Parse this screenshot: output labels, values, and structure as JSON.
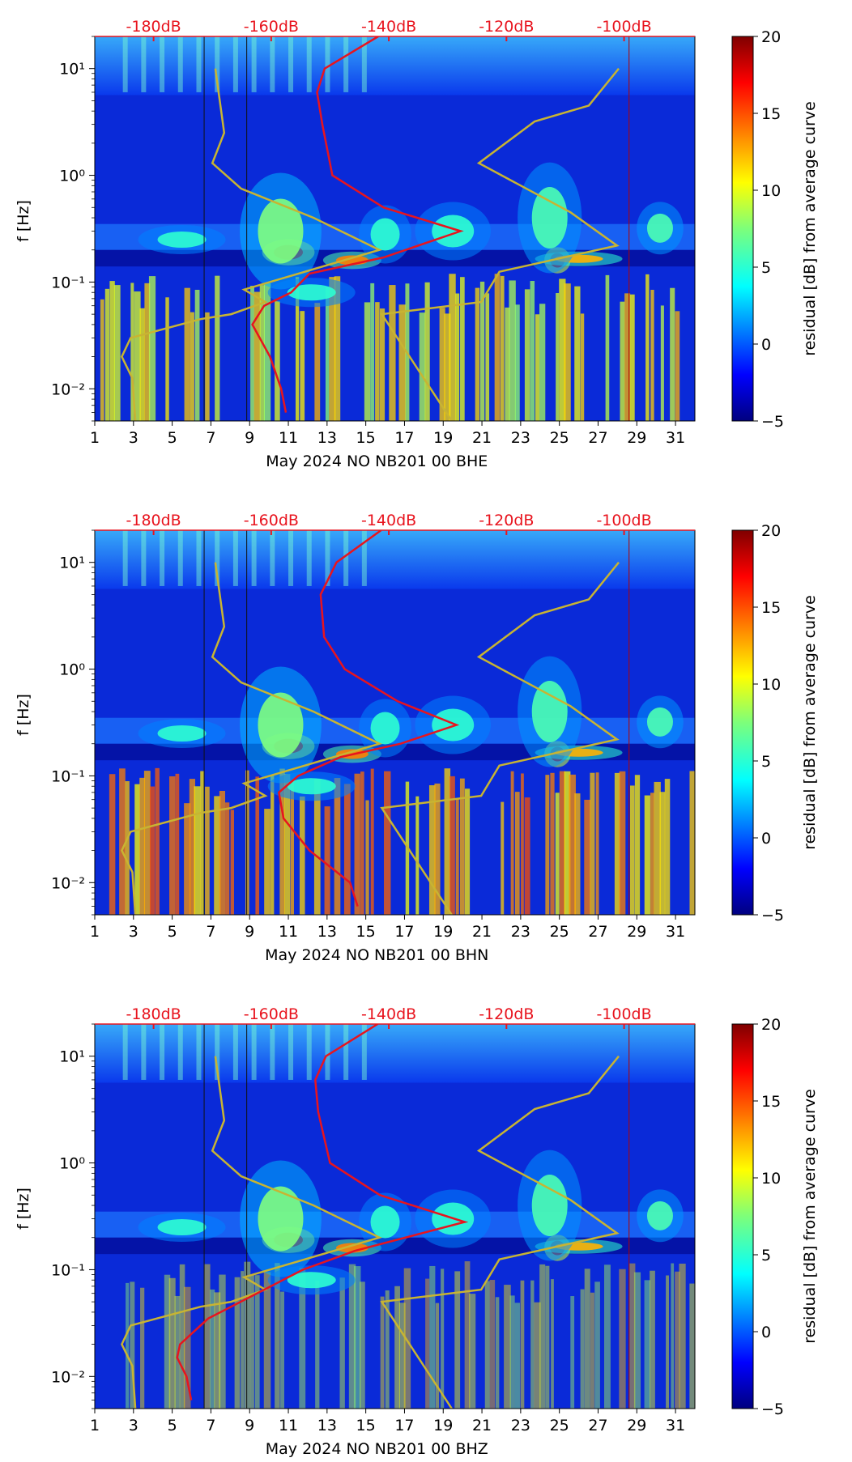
{
  "colors": {
    "median_curve": "#e8141e",
    "noise_models": "#c8b432",
    "top_db_labels": "#e8141e",
    "background": "#ffffff"
  },
  "colorbar": {
    "label": "residual [dB] from average curve",
    "range": [
      -5,
      20
    ],
    "ticks": [
      "−5",
      "0",
      "5",
      "10",
      "15",
      "20"
    ],
    "colormap": "jet"
  },
  "chart_data": [
    {
      "type": "heatmap",
      "xlabel": "May 2024 NO NB201 00 BHE",
      "ylabel": "f [Hz]",
      "xlim": [
        1,
        32
      ],
      "ylim": [
        0.005,
        20
      ],
      "yscale": "log",
      "x_ticks": [
        "1",
        "3",
        "5",
        "7",
        "9",
        "11",
        "13",
        "15",
        "17",
        "19",
        "21",
        "23",
        "25",
        "27",
        "29",
        "31"
      ],
      "y_ticks": [
        "10⁻²",
        "10⁻¹",
        "10⁰",
        "10¹"
      ],
      "top_ticks": [
        "-180dB",
        "-160dB",
        "-140dB",
        "-120dB",
        "-100dB"
      ],
      "median_psd_curve_db": [
        {
          "f": 0.006,
          "db": -157.5
        },
        {
          "f": 0.01,
          "db": -158.3
        },
        {
          "f": 0.02,
          "db": -160.2
        },
        {
          "f": 0.04,
          "db": -163.2
        },
        {
          "f": 0.06,
          "db": -161.2
        },
        {
          "f": 0.08,
          "db": -156.6
        },
        {
          "f": 0.12,
          "db": -153.5
        },
        {
          "f": 0.17,
          "db": -140.9
        },
        {
          "f": 0.3,
          "db": -127.8
        },
        {
          "f": 0.5,
          "db": -140.9
        },
        {
          "f": 1.0,
          "db": -149.6
        },
        {
          "f": 3.0,
          "db": -151.3
        },
        {
          "f": 6.0,
          "db": -152.2
        },
        {
          "f": 10.0,
          "db": -150.9
        },
        {
          "f": 20.0,
          "db": -141.8
        }
      ]
    },
    {
      "type": "heatmap",
      "xlabel": "May 2024 NO NB201 00 BHN",
      "ylabel": "f [Hz]",
      "xlim": [
        1,
        32
      ],
      "ylim": [
        0.005,
        20
      ],
      "yscale": "log",
      "x_ticks": [
        "1",
        "3",
        "5",
        "7",
        "9",
        "11",
        "13",
        "15",
        "17",
        "19",
        "21",
        "23",
        "25",
        "27",
        "29",
        "31"
      ],
      "y_ticks": [
        "10⁻²",
        "10⁻¹",
        "10⁰",
        "10¹"
      ],
      "top_ticks": [
        "-180dB",
        "-160dB",
        "-140dB",
        "-120dB",
        "-100dB"
      ],
      "median_psd_curve_db": [
        {
          "f": 0.006,
          "db": -145.3
        },
        {
          "f": 0.01,
          "db": -146.6
        },
        {
          "f": 0.02,
          "db": -153.5
        },
        {
          "f": 0.04,
          "db": -157.9
        },
        {
          "f": 0.07,
          "db": -158.7
        },
        {
          "f": 0.1,
          "db": -155.4
        },
        {
          "f": 0.15,
          "db": -148.2
        },
        {
          "f": 0.2,
          "db": -138.0
        },
        {
          "f": 0.3,
          "db": -128.5
        },
        {
          "f": 0.5,
          "db": -138.5
        },
        {
          "f": 1.0,
          "db": -147.5
        },
        {
          "f": 2.0,
          "db": -151.0
        },
        {
          "f": 5.0,
          "db": -151.6
        },
        {
          "f": 10.0,
          "db": -148.9
        },
        {
          "f": 20.0,
          "db": -141.3
        }
      ]
    },
    {
      "type": "heatmap",
      "xlabel": "May 2024 NO NB201 00 BHZ",
      "ylabel": "f [Hz]",
      "xlim": [
        1,
        32
      ],
      "ylim": [
        0.005,
        20
      ],
      "yscale": "log",
      "x_ticks": [
        "1",
        "3",
        "5",
        "7",
        "9",
        "11",
        "13",
        "15",
        "17",
        "19",
        "21",
        "23",
        "25",
        "27",
        "29",
        "31"
      ],
      "y_ticks": [
        "10⁻²",
        "10⁻¹",
        "10⁰",
        "10¹"
      ],
      "top_ticks": [
        "-180dB",
        "-160dB",
        "-140dB",
        "-120dB",
        "-100dB"
      ],
      "median_psd_curve_db": [
        {
          "f": 0.006,
          "db": -173.6
        },
        {
          "f": 0.01,
          "db": -174.4
        },
        {
          "f": 0.015,
          "db": -176.0
        },
        {
          "f": 0.02,
          "db": -175.5
        },
        {
          "f": 0.035,
          "db": -170.7
        },
        {
          "f": 0.06,
          "db": -162.4
        },
        {
          "f": 0.1,
          "db": -154.6
        },
        {
          "f": 0.15,
          "db": -145.8
        },
        {
          "f": 0.28,
          "db": -127.1
        },
        {
          "f": 0.5,
          "db": -141.5
        },
        {
          "f": 1.0,
          "db": -150.0
        },
        {
          "f": 3.0,
          "db": -152.0
        },
        {
          "f": 6.0,
          "db": -152.5
        },
        {
          "f": 10.0,
          "db": -150.7
        },
        {
          "f": 20.0,
          "db": -141.9
        }
      ]
    }
  ],
  "noise_models": {
    "low_model_db": [
      {
        "f": 0.005,
        "db": -183.1
      },
      {
        "f": 0.0125,
        "db": -183.6
      },
      {
        "f": 0.02,
        "db": -185.4
      },
      {
        "f": 0.03,
        "db": -183.9
      },
      {
        "f": 0.045,
        "db": -172.0
      },
      {
        "f": 0.05,
        "db": -166.8
      },
      {
        "f": 0.065,
        "db": -161.0
      },
      {
        "f": 0.085,
        "db": -164.6
      },
      {
        "f": 0.2,
        "db": -141.6
      },
      {
        "f": 0.4,
        "db": -152.8
      },
      {
        "f": 0.75,
        "db": -165.1
      },
      {
        "f": 1.3,
        "db": -170.0
      },
      {
        "f": 2.5,
        "db": -168.0
      },
      {
        "f": 10.0,
        "db": -169.5
      }
    ],
    "high_model_db": [
      {
        "f": 0.005,
        "db": -129.3
      },
      {
        "f": 0.05,
        "db": -141.2
      },
      {
        "f": 0.065,
        "db": -124.3
      },
      {
        "f": 0.125,
        "db": -121.2
      },
      {
        "f": 0.22,
        "db": -101.2
      },
      {
        "f": 0.45,
        "db": -109.1
      },
      {
        "f": 1.3,
        "db": -124.7
      },
      {
        "f": 3.2,
        "db": -115.2
      },
      {
        "f": 4.5,
        "db": -106.0
      },
      {
        "f": 10.0,
        "db": -100.9
      }
    ]
  },
  "annotations": {
    "vertical_lines_x": [
      6.65,
      8.85,
      28.6
    ]
  }
}
